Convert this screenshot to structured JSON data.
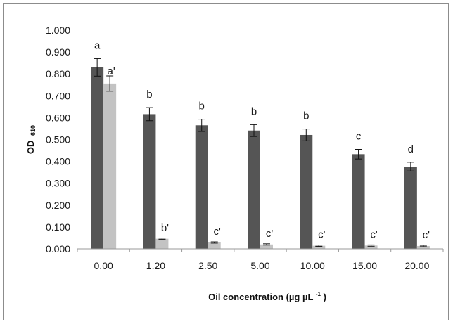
{
  "chart_data": {
    "type": "bar",
    "categories": [
      "0.00",
      "1.20",
      "2.50",
      "5.00",
      "10.00",
      "15.00",
      "20.00"
    ],
    "series": [
      {
        "values": [
          0.83,
          0.616,
          0.565,
          0.541,
          0.521,
          0.433,
          0.376
        ],
        "errors": [
          0.04,
          0.03,
          0.028,
          0.027,
          0.027,
          0.022,
          0.02
        ],
        "labels": [
          "a",
          "b",
          "b",
          "b",
          "b",
          "c",
          "d"
        ],
        "color": "#555555"
      },
      {
        "values": [
          0.756,
          0.046,
          0.029,
          0.02,
          0.014,
          0.015,
          0.013
        ],
        "errors": [
          0.035,
          0.003,
          0.003,
          0.003,
          0.003,
          0.003,
          0.003
        ],
        "labels": [
          "a'",
          "b'",
          "c'",
          "c'",
          "c'",
          "c'",
          "c'"
        ],
        "color": "#c3c3c3"
      }
    ],
    "yticks": [
      "0.000",
      "0.100",
      "0.200",
      "0.300",
      "0.400",
      "0.500",
      "0.600",
      "0.700",
      "0.800",
      "0.900",
      "1.000"
    ],
    "ylim": [
      0,
      1.0
    ],
    "ylabel_main": "OD",
    "ylabel_sub": "610",
    "xlabel_main": "Oil concentration (µg µL",
    "xlabel_sup": "-1",
    "xlabel_end": ")",
    "grid": false,
    "legend": "none"
  }
}
